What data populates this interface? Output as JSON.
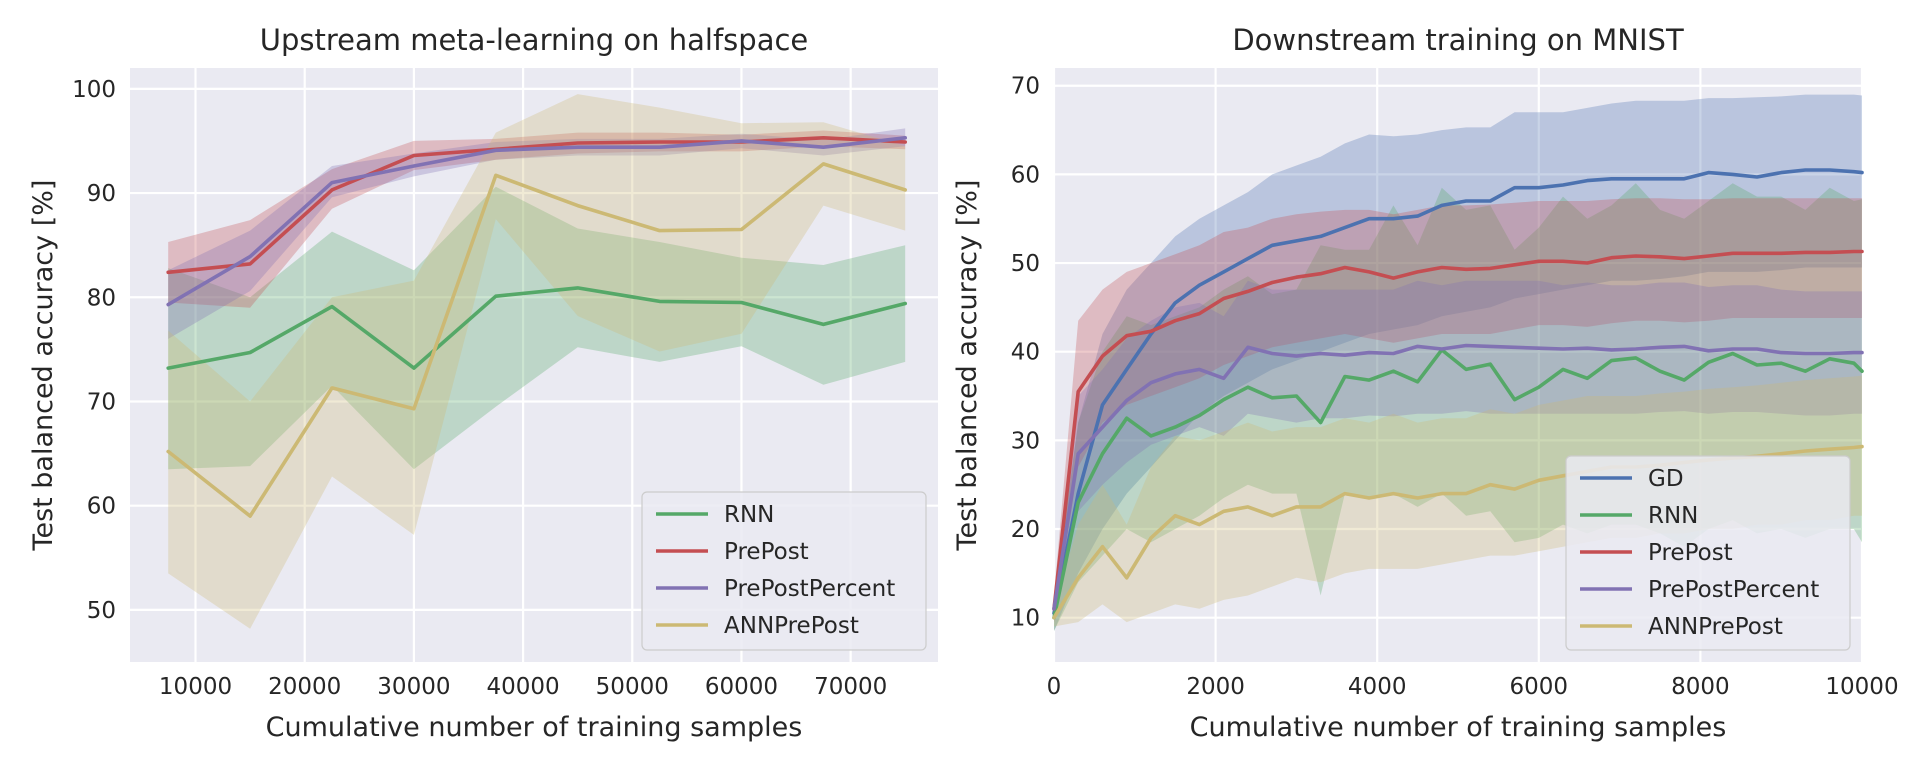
{
  "chart_data": [
    {
      "type": "line",
      "title": "Upstream meta-learning on halfspace",
      "xlabel": "Cumulative number of training samples",
      "ylabel": "Test balanced accuracy [%]",
      "xlim": [
        4000,
        78000
      ],
      "ylim": [
        45,
        102
      ],
      "xticks": [
        10000,
        20000,
        30000,
        40000,
        50000,
        60000,
        70000
      ],
      "yticks": [
        50,
        60,
        70,
        80,
        90,
        100
      ],
      "grid": true,
      "legend": "bottom-right",
      "x": [
        7500,
        15000,
        22500,
        30000,
        37500,
        45000,
        52500,
        60000,
        67500,
        75000
      ],
      "series": [
        {
          "name": "RNN",
          "color": "#55a868",
          "values": [
            73.2,
            74.7,
            79.1,
            73.2,
            80.1,
            80.9,
            79.6,
            79.5,
            77.4,
            79.4
          ],
          "lower": [
            63.5,
            63.8,
            71.5,
            63.5,
            69.5,
            75.2,
            73.8,
            75.3,
            71.6,
            73.8
          ],
          "upper": [
            82.8,
            80.0,
            86.3,
            82.6,
            90.6,
            86.6,
            85.3,
            83.8,
            83.1,
            85.0
          ]
        },
        {
          "name": "PrePost",
          "color": "#c44e52",
          "values": [
            82.4,
            83.2,
            90.3,
            93.6,
            94.2,
            94.8,
            94.9,
            94.9,
            95.3,
            94.9
          ],
          "lower": [
            79.5,
            79.0,
            88.5,
            92.2,
            93.2,
            93.8,
            94.0,
            94.0,
            94.5,
            94.2
          ],
          "upper": [
            85.3,
            87.4,
            92.3,
            95.0,
            95.2,
            95.8,
            95.8,
            95.6,
            96.0,
            95.5
          ]
        },
        {
          "name": "PrePostPercent",
          "color": "#8172b3",
          "values": [
            79.3,
            83.9,
            91.0,
            92.6,
            94.1,
            94.4,
            94.4,
            95.0,
            94.4,
            95.3
          ],
          "lower": [
            76.0,
            80.6,
            89.6,
            91.6,
            93.2,
            93.6,
            93.6,
            94.3,
            93.6,
            94.5
          ],
          "upper": [
            82.6,
            86.4,
            92.6,
            93.8,
            94.9,
            95.2,
            95.2,
            95.7,
            95.1,
            96.2
          ]
        },
        {
          "name": "ANNPrePost",
          "color": "#ccb974",
          "values": [
            65.2,
            59.0,
            71.3,
            69.3,
            91.7,
            88.8,
            86.4,
            86.5,
            92.8,
            90.3
          ],
          "lower": [
            53.5,
            48.2,
            62.8,
            57.2,
            87.5,
            78.2,
            74.8,
            76.5,
            88.8,
            86.4
          ],
          "upper": [
            76.8,
            70.0,
            80.0,
            81.6,
            95.8,
            99.5,
            98.2,
            96.7,
            96.8,
            94.5
          ]
        }
      ]
    },
    {
      "type": "line",
      "title": "Downstream training on MNIST",
      "xlabel": "Cumulative number of training samples",
      "ylabel": "Test balanced accuracy [%]",
      "xlim": [
        0,
        10000
      ],
      "ylim": [
        5,
        72
      ],
      "xticks": [
        0,
        2000,
        4000,
        6000,
        8000,
        10000
      ],
      "yticks": [
        10,
        20,
        30,
        40,
        50,
        60,
        70
      ],
      "grid": true,
      "legend": "bottom-right",
      "x": [
        0,
        300,
        600,
        900,
        1200,
        1500,
        1800,
        2100,
        2400,
        2700,
        3000,
        3300,
        3600,
        3900,
        4200,
        4500,
        4800,
        5100,
        5400,
        5700,
        6000,
        6300,
        6600,
        6900,
        7200,
        7500,
        7800,
        8100,
        8400,
        8700,
        9000,
        9300,
        9600,
        9900,
        10000
      ],
      "series": [
        {
          "name": "GD",
          "color": "#4c72b0",
          "values": [
            10.5,
            24.0,
            34.0,
            38.0,
            42.0,
            45.5,
            47.5,
            49.0,
            50.5,
            52.0,
            52.5,
            53.0,
            54.0,
            55.0,
            55.0,
            55.3,
            56.5,
            57.0,
            57.0,
            58.5,
            58.5,
            58.8,
            59.3,
            59.5,
            59.5,
            59.5,
            59.5,
            60.2,
            60.0,
            59.7,
            60.2,
            60.5,
            60.5,
            60.3,
            60.2
          ],
          "lower": [
            8.5,
            15.0,
            20.0,
            24.0,
            27.0,
            30.0,
            33.0,
            35.0,
            36.5,
            38.0,
            39.0,
            40.0,
            41.0,
            42.0,
            42.5,
            43.0,
            44.0,
            44.5,
            45.0,
            46.0,
            46.5,
            47.0,
            47.5,
            48.0,
            48.0,
            48.2,
            48.5,
            49.0,
            49.0,
            49.0,
            49.2,
            49.5,
            49.5,
            49.5,
            49.5
          ],
          "upper": [
            12.5,
            32.0,
            42.0,
            47.0,
            50.0,
            53.0,
            55.0,
            56.5,
            58.0,
            60.0,
            61.0,
            62.0,
            63.5,
            64.5,
            64.3,
            64.5,
            65.0,
            65.3,
            65.3,
            67.0,
            67.0,
            67.0,
            67.5,
            68.0,
            68.3,
            68.3,
            68.3,
            68.6,
            68.6,
            68.7,
            68.8,
            69.0,
            69.0,
            69.0,
            68.9
          ]
        },
        {
          "name": "RNN",
          "color": "#55a868",
          "values": [
            10.0,
            23.0,
            28.5,
            32.5,
            30.5,
            31.5,
            32.8,
            34.6,
            36.0,
            34.8,
            35.0,
            32.0,
            37.2,
            36.8,
            37.8,
            36.6,
            40.2,
            38.0,
            38.6,
            34.6,
            36.0,
            38.0,
            37.0,
            39.0,
            39.3,
            37.8,
            36.8,
            38.8,
            39.8,
            38.5,
            38.7,
            37.8,
            39.2,
            38.7,
            37.8
          ],
          "lower": [
            8.5,
            14.0,
            17.0,
            20.0,
            18.5,
            20.0,
            21.5,
            23.5,
            25.0,
            24.0,
            24.0,
            12.5,
            24.0,
            23.5,
            24.0,
            22.5,
            24.0,
            21.5,
            22.0,
            18.5,
            19.0,
            20.5,
            19.5,
            20.5,
            20.5,
            19.5,
            18.0,
            20.0,
            21.0,
            19.5,
            20.0,
            19.0,
            20.0,
            20.0,
            18.5
          ],
          "upper": [
            11.5,
            32.0,
            40.0,
            44.0,
            43.0,
            44.0,
            45.0,
            47.0,
            48.5,
            46.5,
            47.0,
            52.0,
            51.5,
            51.5,
            56.5,
            52.0,
            58.5,
            56.0,
            56.5,
            51.5,
            54.0,
            57.5,
            55.0,
            56.5,
            59.0,
            56.0,
            55.0,
            57.0,
            59.0,
            57.5,
            57.5,
            56.0,
            58.5,
            57.0,
            57.2
          ]
        },
        {
          "name": "PrePost",
          "color": "#c44e52",
          "values": [
            11.0,
            35.5,
            39.5,
            41.8,
            42.3,
            43.5,
            44.3,
            46.0,
            46.8,
            47.8,
            48.4,
            48.8,
            49.5,
            49.0,
            48.3,
            49.0,
            49.5,
            49.3,
            49.4,
            49.8,
            50.2,
            50.2,
            50.0,
            50.6,
            50.8,
            50.7,
            50.5,
            50.8,
            51.1,
            51.1,
            51.1,
            51.2,
            51.2,
            51.3,
            51.3
          ],
          "lower": [
            9.5,
            27.0,
            32.0,
            34.0,
            35.0,
            36.0,
            37.0,
            38.5,
            39.5,
            40.5,
            41.0,
            41.5,
            42.0,
            41.5,
            41.0,
            41.5,
            42.0,
            42.0,
            42.0,
            42.5,
            43.0,
            43.0,
            42.8,
            43.2,
            43.5,
            43.5,
            43.3,
            43.5,
            43.8,
            43.8,
            43.8,
            43.8,
            43.8,
            43.8,
            43.8
          ],
          "upper": [
            12.5,
            43.5,
            47.0,
            49.0,
            50.0,
            51.0,
            52.0,
            53.5,
            54.0,
            55.0,
            55.5,
            55.8,
            56.0,
            56.0,
            55.5,
            56.0,
            56.5,
            56.5,
            56.6,
            56.8,
            57.0,
            57.0,
            57.0,
            57.2,
            57.3,
            57.3,
            57.2,
            57.2,
            57.3,
            57.3,
            57.3,
            57.3,
            57.3,
            57.3,
            57.3
          ]
        },
        {
          "name": "PrePostPercent",
          "color": "#8172b3",
          "values": [
            11.0,
            28.5,
            31.5,
            34.5,
            36.5,
            37.5,
            38.0,
            37.0,
            40.5,
            39.8,
            39.5,
            39.8,
            39.6,
            39.9,
            39.8,
            40.6,
            40.3,
            40.7,
            40.6,
            40.5,
            40.4,
            40.3,
            40.4,
            40.2,
            40.3,
            40.5,
            40.6,
            40.1,
            40.3,
            40.3,
            39.9,
            39.8,
            39.8,
            39.9,
            39.9
          ],
          "lower": [
            9.5,
            22.0,
            25.0,
            27.5,
            29.5,
            30.5,
            31.5,
            30.5,
            33.0,
            32.5,
            32.0,
            32.5,
            32.5,
            32.8,
            32.7,
            33.0,
            33.0,
            33.3,
            33.0,
            33.0,
            33.0,
            33.0,
            33.0,
            33.0,
            33.0,
            33.2,
            33.3,
            33.0,
            33.2,
            33.2,
            33.0,
            32.8,
            32.8,
            33.0,
            33.0
          ],
          "upper": [
            12.5,
            35.0,
            38.0,
            41.5,
            43.5,
            45.0,
            45.5,
            44.0,
            48.0,
            47.0,
            47.0,
            47.0,
            47.0,
            47.0,
            47.0,
            48.0,
            47.5,
            48.0,
            48.0,
            48.0,
            48.0,
            47.5,
            47.8,
            47.5,
            47.5,
            47.8,
            47.8,
            47.3,
            47.5,
            47.5,
            47.0,
            46.8,
            46.8,
            46.8,
            46.8
          ]
        },
        {
          "name": "ANNPrePost",
          "color": "#ccb974",
          "values": [
            10.0,
            14.5,
            18.0,
            14.5,
            19.0,
            21.5,
            20.5,
            22.0,
            22.5,
            21.5,
            22.5,
            22.5,
            24.0,
            23.5,
            24.0,
            23.5,
            24.0,
            24.0,
            25.0,
            24.5,
            25.5,
            26.0,
            26.5,
            27.0,
            27.0,
            27.2,
            27.5,
            27.8,
            28.0,
            28.2,
            28.5,
            28.8,
            29.0,
            29.2,
            29.3
          ],
          "lower": [
            9.0,
            9.5,
            11.5,
            9.5,
            10.5,
            11.5,
            11.0,
            12.0,
            12.5,
            13.5,
            14.5,
            14.0,
            15.0,
            15.5,
            15.5,
            15.5,
            16.0,
            16.5,
            17.0,
            17.0,
            17.5,
            18.0,
            18.5,
            19.0,
            19.0,
            19.5,
            19.5,
            20.0,
            20.0,
            20.5,
            20.5,
            21.0,
            21.0,
            21.5,
            21.5
          ],
          "upper": [
            11.0,
            20.5,
            25.0,
            20.5,
            27.0,
            30.5,
            30.0,
            31.0,
            32.0,
            31.0,
            31.5,
            31.5,
            32.5,
            32.0,
            33.0,
            32.0,
            32.5,
            32.5,
            33.5,
            33.0,
            34.0,
            34.5,
            35.0,
            35.0,
            35.0,
            35.3,
            35.5,
            35.8,
            36.0,
            36.2,
            36.5,
            36.8,
            37.0,
            37.2,
            37.3
          ]
        }
      ]
    }
  ]
}
